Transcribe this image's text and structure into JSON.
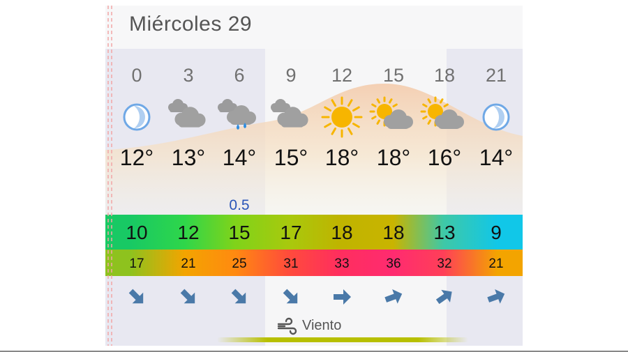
{
  "day": {
    "title": "Miércoles 29"
  },
  "hours": [
    "0",
    "3",
    "6",
    "9",
    "12",
    "15",
    "18",
    "21"
  ],
  "icons": [
    "moon-icon",
    "cloud-icon",
    "cloud-rain-icon",
    "cloud-icon",
    "sun-icon",
    "sun-cloud-icon",
    "sun-cloud-icon",
    "moon-icon"
  ],
  "temperatures": [
    "12°",
    "13°",
    "14°",
    "15°",
    "18°",
    "18°",
    "16°",
    "14°"
  ],
  "precipitation": [
    "",
    "",
    "0.5",
    "",
    "",
    "",
    "",
    ""
  ],
  "band_a": [
    "10",
    "12",
    "15",
    "17",
    "18",
    "18",
    "13",
    "9"
  ],
  "band_b": [
    "17",
    "21",
    "25",
    "31",
    "33",
    "36",
    "32",
    "21"
  ],
  "wind_directions": [
    "southeast",
    "southeast",
    "southeast",
    "southeast",
    "east",
    "east-northeast",
    "northeast",
    "east-northeast"
  ],
  "wind": {
    "label": "Viento",
    "icon": "wind-icon"
  },
  "colors": {
    "band_a_gradient": [
      "#18c964",
      "#2fd64a",
      "#7fd31a",
      "#a8c90d",
      "#bfb400",
      "#c9b400",
      "#3fc8a6",
      "#11c7e8"
    ],
    "band_b_gradient": [
      "#8ec21e",
      "#f3a400",
      "#ff8a10",
      "#ff4b3c",
      "#ff2e5e",
      "#ff2b70",
      "#ff3f58",
      "#f3a400"
    ],
    "arrow": "#4a79a8",
    "sun": "#f7b500",
    "cloud": "#a0a0a0",
    "moon": "#6fa8e6",
    "rain": "#2f8de0"
  }
}
